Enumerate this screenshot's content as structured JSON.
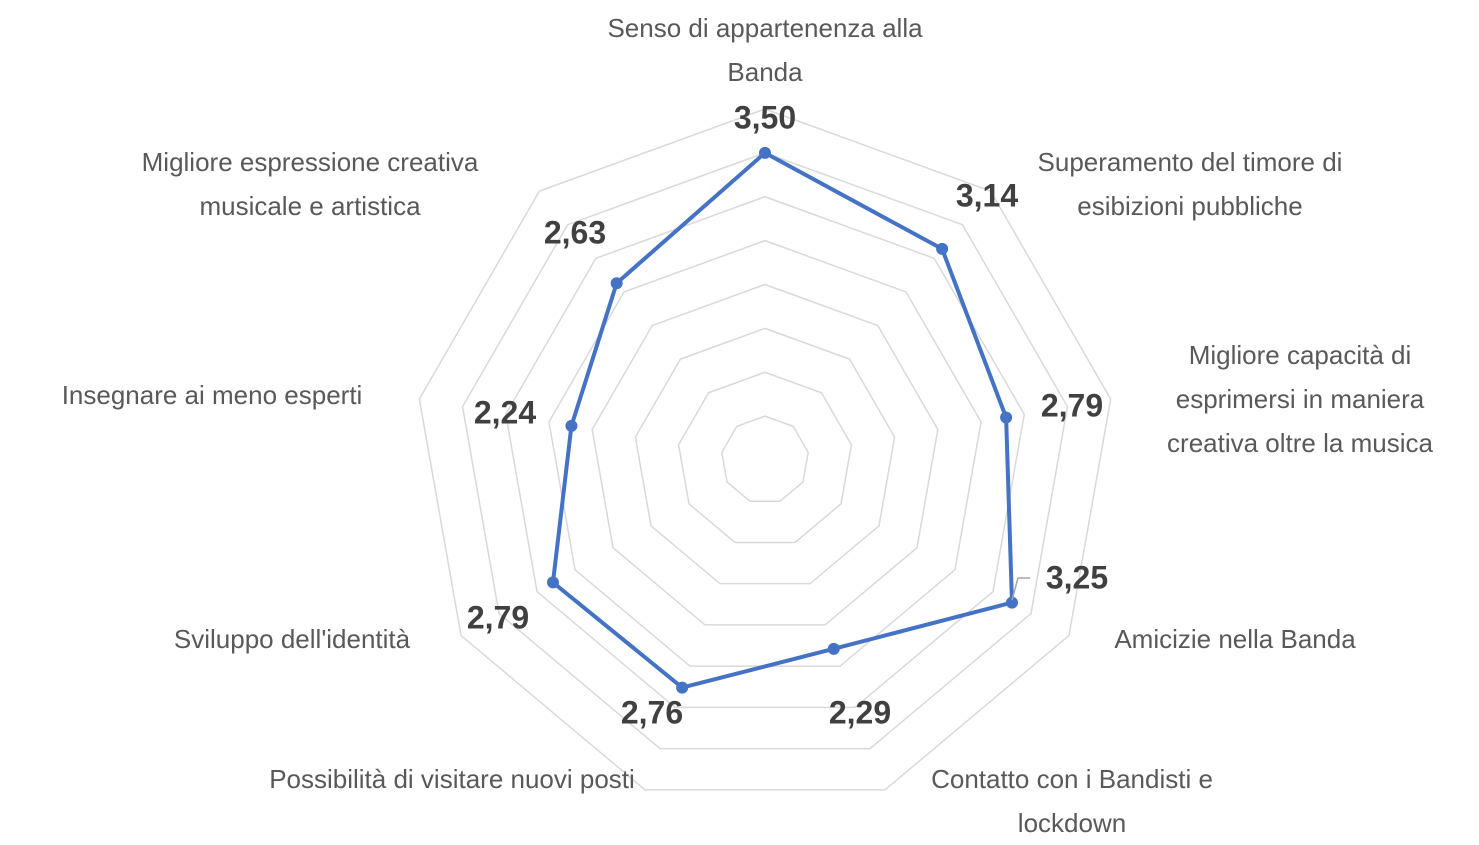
{
  "chart_data": {
    "type": "radar",
    "categories": [
      "Senso di appartenenza alla Banda",
      "Superamento del timore di esibizioni pubbliche",
      "Migliore capacità di esprimersi in maniera creativa oltre la musica",
      "Amicizie nella Banda",
      "Contatto con i Bandisti e lockdown",
      "Possibilità di visitare nuovi posti",
      "Sviluppo dell'identità",
      "Insegnare ai meno esperti",
      "Migliore espressione creativa musicale e artistica"
    ],
    "values": [
      3.5,
      3.14,
      2.79,
      3.25,
      2.29,
      2.76,
      2.79,
      2.24,
      2.63
    ],
    "value_labels": [
      "3,50",
      "3,14",
      "2,79",
      "3,25",
      "2,29",
      "2,76",
      "2,79",
      "2,24",
      "2,63"
    ],
    "color": "#4472c4",
    "ylim": [
      0,
      4
    ],
    "yticks": [
      0,
      0.5,
      1,
      1.5,
      2,
      2.5,
      3,
      3.5,
      4
    ],
    "grid": true
  }
}
